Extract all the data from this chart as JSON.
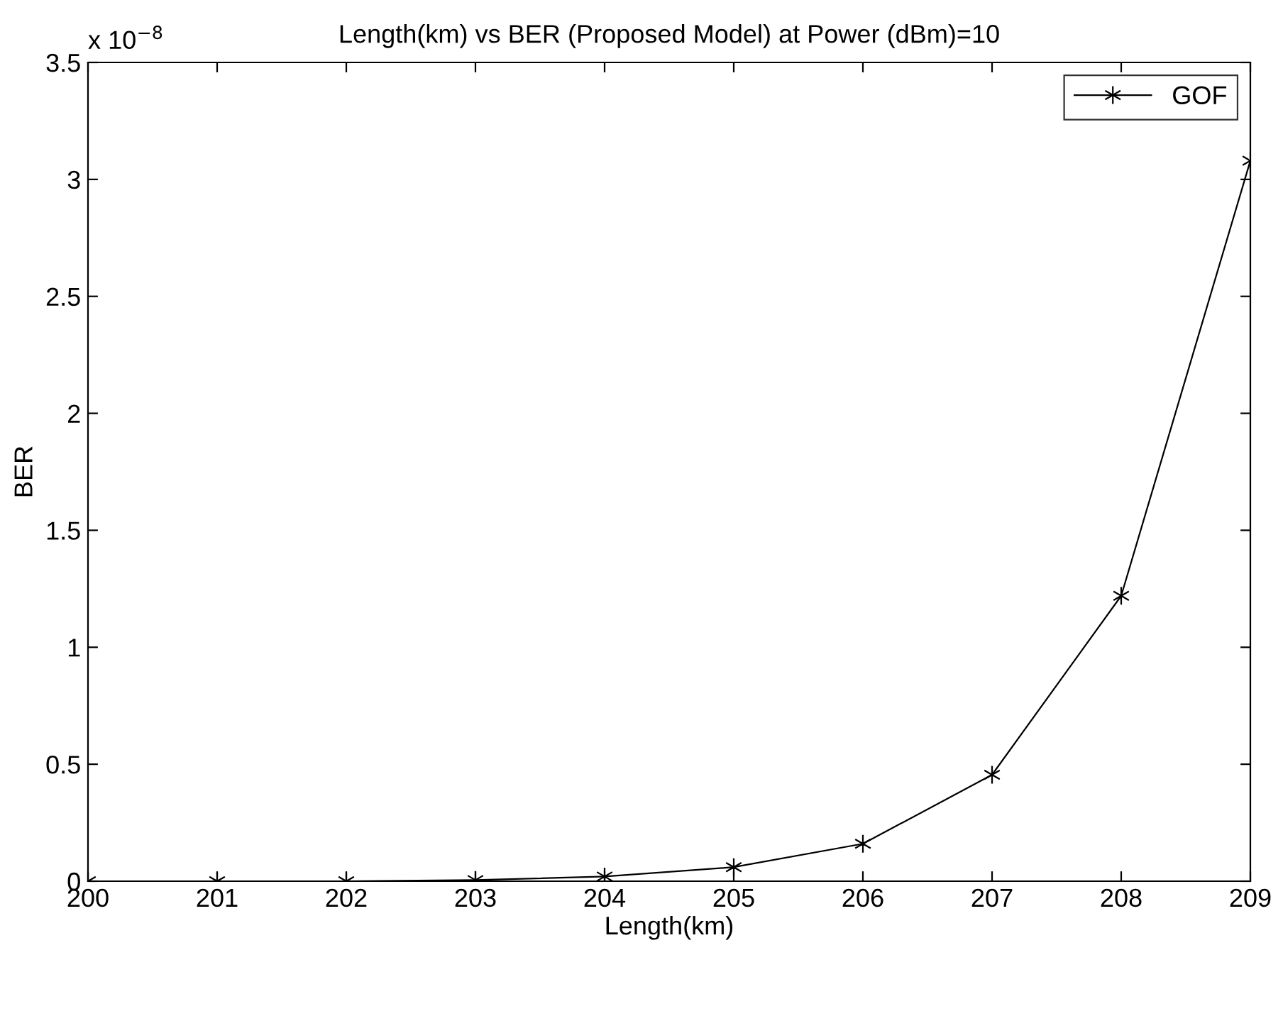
{
  "chart_data": {
    "type": "line",
    "title": "Length(km) vs BER (Proposed Model) at Power (dBm)=10",
    "xlabel": "Length(km)",
    "ylabel": "BER",
    "annotations": [
      "x 10$^{−8}$"
    ],
    "x": [
      200,
      201,
      202,
      203,
      204,
      205,
      206,
      207,
      208,
      209
    ],
    "series": [
      {
        "name": "GOF",
        "color": "#000000",
        "values": [
          0.0,
          0.0,
          0.0,
          0.005,
          0.02,
          0.06,
          0.16,
          0.455,
          1.22,
          3.08
        ]
      }
    ],
    "xlim": [
      200,
      209
    ],
    "xticks": [
      200,
      201,
      202,
      203,
      204,
      205,
      206,
      207,
      208,
      209
    ],
    "ylim": [
      0,
      3.5
    ],
    "yticks": [
      0,
      0.5,
      1,
      1.5,
      2,
      2.5,
      3,
      3.5
    ],
    "grid": false,
    "legend": "top right",
    "marker": "cross",
    "line_style": "solid"
  }
}
